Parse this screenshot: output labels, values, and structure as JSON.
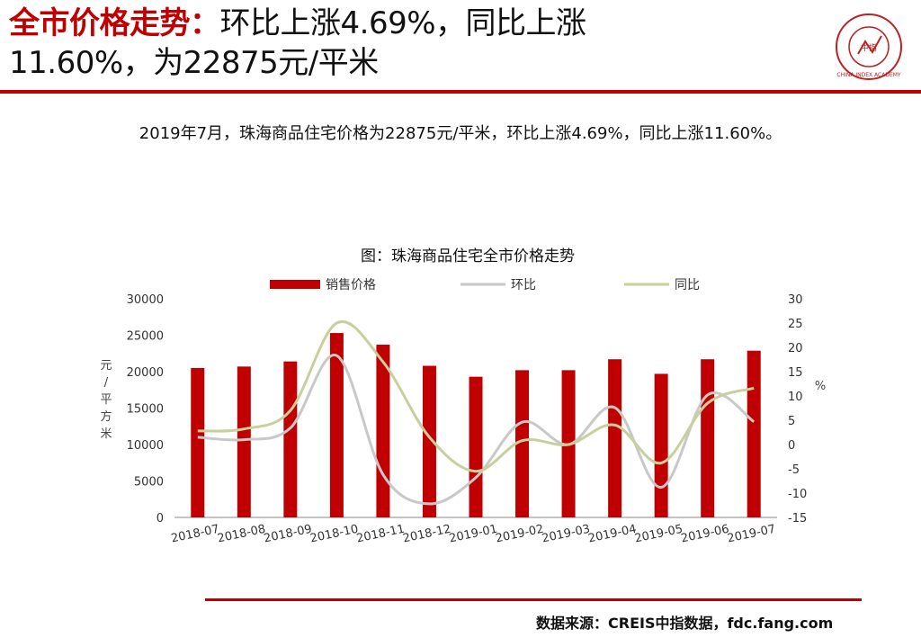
{
  "header": {
    "title_lead": "全市价格走势：",
    "title_rest_line1": "环比上涨4.69%，同比上涨",
    "title_rest_line2": "11.60%，为22875元/平米",
    "accent_color": "#c00000",
    "logo_text": "中指",
    "logo_ring_text": "CHINA INDEX ACADEMY"
  },
  "subtitle": "2019年7月，珠海商品住宅价格为22875元/平米，环比上涨4.69%，同比上涨11.60%。",
  "chart_data": {
    "type": "bar+line",
    "title": "图：珠海商品住宅全市价格走势",
    "categories": [
      "2018-07",
      "2018-08",
      "2018-09",
      "2018-10",
      "2018-11",
      "2018-12",
      "2019-01",
      "2019-02",
      "2019-03",
      "2019-04",
      "2019-05",
      "2019-06",
      "2019-07"
    ],
    "series": [
      {
        "name": "销售价格",
        "type": "bar",
        "axis": "left",
        "color": "#c00000",
        "values": [
          20500,
          20700,
          21400,
          25300,
          23700,
          20800,
          19300,
          20200,
          20200,
          21700,
          19700,
          21700,
          22875
        ]
      },
      {
        "name": "环比",
        "type": "line",
        "axis": "right",
        "color": "#c8c8c8",
        "values": [
          1.5,
          1.0,
          3.4,
          18.3,
          -6.2,
          -12.2,
          -6.8,
          4.6,
          0.0,
          7.6,
          -8.8,
          10.2,
          4.69
        ]
      },
      {
        "name": "同比",
        "type": "line",
        "axis": "right",
        "color": "#c9cf9c",
        "values": [
          2.8,
          3.2,
          7.0,
          25.0,
          17.0,
          1.5,
          -5.5,
          0.8,
          0.0,
          4.0,
          -3.8,
          8.5,
          11.6
        ]
      }
    ],
    "ylabel_left": "元/平方米",
    "ylabel_right": "%",
    "ylim_left": [
      0,
      30000
    ],
    "yticks_left": [
      "0",
      "5000",
      "10000",
      "15000",
      "20000",
      "25000",
      "30000"
    ],
    "ylim_right": [
      -15,
      30
    ],
    "yticks_right": [
      "-15",
      "-10",
      "-5",
      "0",
      "5",
      "10",
      "15",
      "20",
      "25",
      "30"
    ],
    "legend_position": "top",
    "grid": false
  },
  "footer": {
    "source": "数据来源：CREIS中指数据，fdc.fang.com"
  }
}
